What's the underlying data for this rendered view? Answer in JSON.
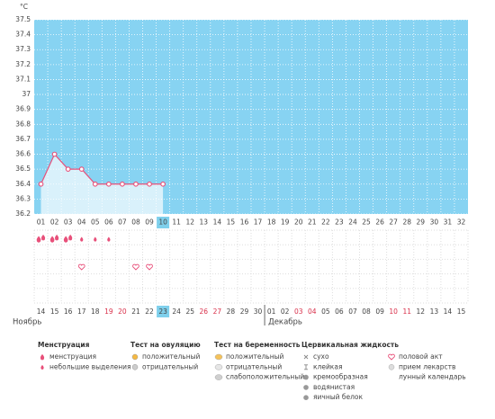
{
  "chart_data": {
    "type": "line",
    "y_label": "°C",
    "x": [
      "01",
      "02",
      "03",
      "04",
      "05",
      "06",
      "07",
      "08",
      "09",
      "10",
      "11",
      "12",
      "13",
      "14",
      "15",
      "16",
      "17",
      "18",
      "19",
      "20",
      "21",
      "22",
      "23",
      "24",
      "25",
      "26",
      "27",
      "28",
      "29",
      "30",
      "31",
      "32"
    ],
    "values": [
      36.4,
      36.6,
      36.5,
      36.5,
      36.4,
      36.4,
      36.4,
      36.4,
      36.4,
      36.4,
      null,
      null,
      null,
      null,
      null,
      null,
      null,
      null,
      null,
      null,
      null,
      null,
      null,
      null,
      null,
      null,
      null,
      null,
      null,
      null,
      null,
      null
    ],
    "color": "#e8507a",
    "background": "#87d3f2",
    "fill_below": "#d9f1fb",
    "ylim": [
      36.2,
      37.5
    ],
    "yticks": [
      36.2,
      36.3,
      36.4,
      36.5,
      36.6,
      36.7,
      36.8,
      36.9,
      37,
      37.1,
      37.2,
      37.3,
      37.4,
      37.5
    ],
    "grid": true,
    "selected_index": 9
  },
  "day_marks": {
    "menstruation_days": [
      0,
      1,
      2
    ],
    "spotting_days": [
      3,
      4,
      5
    ],
    "intercourse_days": [
      3,
      7,
      8
    ]
  },
  "calendar": {
    "dates": [
      "14",
      "15",
      "16",
      "17",
      "18",
      "19",
      "20",
      "21",
      "22",
      "23",
      "24",
      "25",
      "26",
      "27",
      "28",
      "29",
      "30",
      "01",
      "02",
      "03",
      "04",
      "05",
      "06",
      "07",
      "08",
      "09",
      "10",
      "11",
      "12",
      "13",
      "14",
      "15"
    ],
    "weekends": [
      5,
      6,
      12,
      13,
      19,
      20,
      26,
      27
    ],
    "weekend_color": "#d9304a",
    "selected_index": 9,
    "months": [
      {
        "label": "Ноябрь",
        "start": 0
      },
      {
        "label": "Декабрь",
        "start": 17
      }
    ]
  },
  "legend": [
    {
      "title": "Менструация",
      "items": [
        "менструация",
        "небольшие выделения"
      ]
    },
    {
      "title": "Тест на овуляцию",
      "items": [
        "положительный",
        "отрицательный"
      ]
    },
    {
      "title": "Тест на беременность",
      "items": [
        "положительный",
        "отрицательный",
        "слабоположительный"
      ]
    },
    {
      "title": "Цервикальная жидкость",
      "items": [
        "сухо",
        "клейкая",
        "кремообразная",
        "водянистая",
        "яичный белок"
      ]
    },
    {
      "items": [
        "половой акт",
        "прием лекарств",
        "лунный календарь"
      ]
    }
  ]
}
